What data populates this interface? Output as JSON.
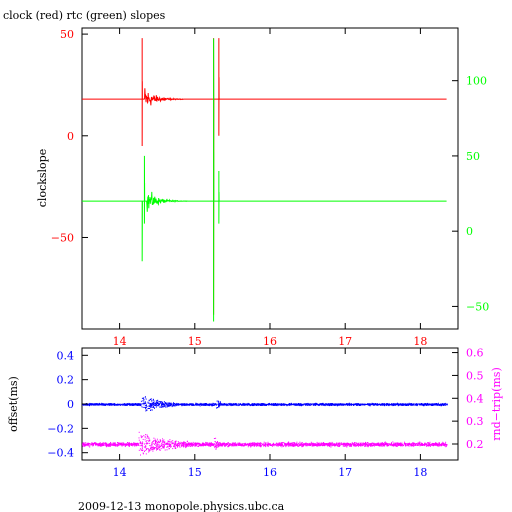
{
  "title": "clock (red) rtc (green) slopes",
  "footer": "2009-12-13  monopole.physics.ubc.ca",
  "colors": {
    "red": "#ff0000",
    "green": "#00ff00",
    "blue": "#0000ff",
    "magenta": "#ff00ff",
    "axis": "#000000"
  },
  "chart_data": [
    {
      "type": "line",
      "title": "clock (red) rtc (green) slopes",
      "xlabel": "",
      "ylabel": "clockslope",
      "xlim": [
        13.5,
        18.5
      ],
      "ylim": [
        -95,
        53
      ],
      "xticks": [
        14,
        15,
        16,
        17,
        18
      ],
      "yticks": [
        50,
        0,
        -50
      ],
      "y2lim": [
        -65,
        135
      ],
      "y2ticks": [
        100,
        50,
        0,
        -50
      ],
      "grid": false,
      "series": [
        {
          "name": "clock",
          "axis": "left",
          "color": "#ff0000",
          "baseline": 18,
          "x_start": 13.5,
          "x_end": 18.35,
          "features": [
            {
              "x": 14.3,
              "kind": "spike",
              "min": -5,
              "max": 48
            },
            {
              "x": 14.33,
              "kind": "noisy_decay",
              "amplitude": 10,
              "until": 14.85
            },
            {
              "x": 15.25,
              "kind": "spike",
              "min": -88,
              "max": 48
            },
            {
              "x": 15.32,
              "kind": "spike",
              "min": 0,
              "max": 48
            }
          ]
        },
        {
          "name": "rtc",
          "axis": "right",
          "color": "#00ff00",
          "baseline": 20,
          "x_start": 13.5,
          "x_end": 18.35,
          "features": [
            {
              "x": 14.3,
              "kind": "spike",
              "min": -20,
              "max": 20
            },
            {
              "x": 14.33,
              "kind": "spike",
              "min": 5,
              "max": 50
            },
            {
              "x": 14.36,
              "kind": "noisy_decay",
              "amplitude": 12,
              "until": 14.9
            },
            {
              "x": 15.25,
              "kind": "spike",
              "min": -60,
              "max": 128
            },
            {
              "x": 15.32,
              "kind": "spike",
              "min": 5,
              "max": 40
            }
          ]
        }
      ]
    },
    {
      "type": "scatter",
      "xlabel": "",
      "ylabel": "offset(ms)",
      "y2label": "rnd−trip(ms)",
      "xlim": [
        13.5,
        18.5
      ],
      "xticks": [
        14,
        15,
        16,
        17,
        18
      ],
      "ylim": [
        -0.46,
        0.46
      ],
      "yticks": [
        0.4,
        0.2,
        0,
        -0.2,
        -0.4
      ],
      "y2lim": [
        0.13,
        0.62
      ],
      "y2ticks": [
        0.6,
        0.5,
        0.4,
        0.3,
        0.2
      ],
      "grid": false,
      "series": [
        {
          "name": "offset",
          "axis": "left",
          "color": "#0000ff",
          "baseline": 0.0,
          "noise": 0.012,
          "bursts": [
            {
              "x_from": 14.28,
              "x_to": 14.75,
              "spread": 0.1
            },
            {
              "x_from": 15.28,
              "x_to": 15.34,
              "spread": 0.12
            }
          ]
        },
        {
          "name": "rnd-trip",
          "axis": "right",
          "color": "#ff00ff",
          "baseline": 0.2,
          "noise": 0.012,
          "bursts": [
            {
              "x_from": 14.25,
              "x_to": 14.9,
              "spread": 0.08
            },
            {
              "x_from": 15.25,
              "x_to": 15.35,
              "spread": 0.06
            }
          ]
        }
      ]
    }
  ]
}
